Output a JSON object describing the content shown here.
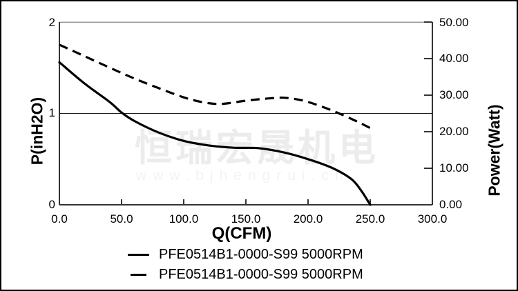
{
  "watermark": {
    "line1": "恒瑞宏晟机电",
    "line2": "www.bjhengrui.cn"
  },
  "axes": {
    "x": {
      "title": "Q(CFM)",
      "ticks": [
        "0.0",
        "50.0",
        "100.0",
        "150.0",
        "200.0",
        "250.0",
        "300.0"
      ]
    },
    "y_left": {
      "title": "P(inH2O)",
      "ticks": [
        "2",
        "1",
        "0"
      ]
    },
    "y_right": {
      "title": "Power(Watt)",
      "ticks": [
        "50.00",
        "40.00",
        "30.00",
        "20.00",
        "10.00",
        "0.00"
      ]
    }
  },
  "legend": [
    {
      "style": "solid",
      "label": "PFE0514B1-0000-S99 5000RPM"
    },
    {
      "style": "dashed",
      "label": "PFE0514B1-0000-S99 5000RPM"
    }
  ],
  "colors": {
    "curve": "#000000",
    "reference_line": "#1a1a1a",
    "axis": "#333333",
    "plot_top_border": "#999999",
    "watermark_cn": "#ececec",
    "watermark_url": "#f3f3f3"
  },
  "chart_data": {
    "type": "line",
    "title": "",
    "xlabel": "Q(CFM)",
    "ylabel_left": "P(inH2O)",
    "ylabel_right": "Power(Watt)",
    "xlim": [
      0,
      300
    ],
    "ylim_left": [
      0,
      2
    ],
    "ylim_right": [
      0,
      50
    ],
    "x_ticks": [
      0,
      50,
      100,
      150,
      200,
      250,
      300
    ],
    "y_left_ticks": [
      0,
      1,
      2
    ],
    "y_right_ticks": [
      0,
      10,
      20,
      30,
      40,
      50
    ],
    "grid": "single horizontal reference line at left-axis value 1.0 (right-axis 25.00)",
    "legend_position": "below chart, centered",
    "reference_line_left_value": 1.0,
    "series": [
      {
        "name": "PFE0514B1-0000-S99 5000RPM",
        "axis": "left",
        "style": "solid",
        "unit": "inH2O",
        "points": [
          [
            0,
            1.56
          ],
          [
            20,
            1.33
          ],
          [
            40,
            1.13
          ],
          [
            50,
            1.01
          ],
          [
            60,
            0.92
          ],
          [
            80,
            0.79
          ],
          [
            100,
            0.7
          ],
          [
            120,
            0.65
          ],
          [
            140,
            0.625
          ],
          [
            160,
            0.62
          ],
          [
            180,
            0.575
          ],
          [
            200,
            0.5
          ],
          [
            220,
            0.4
          ],
          [
            235,
            0.28
          ],
          [
            243,
            0.15
          ],
          [
            250,
            0.0
          ]
        ]
      },
      {
        "name": "PFE0514B1-0000-S99 5000RPM",
        "axis": "right",
        "style": "dashed",
        "unit": "Watt",
        "points": [
          [
            0,
            43.8
          ],
          [
            20,
            40.7
          ],
          [
            40,
            37.6
          ],
          [
            60,
            34.6
          ],
          [
            80,
            31.9
          ],
          [
            100,
            29.4
          ],
          [
            115,
            28.1
          ],
          [
            130,
            27.6
          ],
          [
            150,
            28.5
          ],
          [
            165,
            29.0
          ],
          [
            180,
            29.3
          ],
          [
            195,
            28.6
          ],
          [
            210,
            27.0
          ],
          [
            225,
            25.0
          ],
          [
            240,
            22.7
          ],
          [
            250,
            21.0
          ]
        ]
      }
    ]
  }
}
